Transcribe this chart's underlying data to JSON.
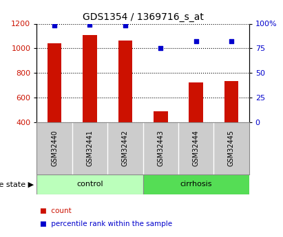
{
  "title": "GDS1354 / 1369716_s_at",
  "samples": [
    "GSM32440",
    "GSM32441",
    "GSM32442",
    "GSM32443",
    "GSM32444",
    "GSM32445"
  ],
  "counts": [
    1040,
    1110,
    1065,
    490,
    720,
    735
  ],
  "percentiles": [
    98,
    99,
    98,
    75,
    82,
    82
  ],
  "groups": [
    {
      "label": "control",
      "indices": [
        0,
        1,
        2
      ],
      "color": "#bbffbb"
    },
    {
      "label": "cirrhosis",
      "indices": [
        3,
        4,
        5
      ],
      "color": "#55dd55"
    }
  ],
  "bar_color": "#cc1100",
  "dot_color": "#0000cc",
  "ylim_left": [
    400,
    1200
  ],
  "ylim_right": [
    0,
    100
  ],
  "yticks_left": [
    400,
    600,
    800,
    1000,
    1200
  ],
  "yticks_right": [
    0,
    25,
    50,
    75,
    100
  ],
  "ytick_labels_right": [
    "0",
    "25",
    "50",
    "75",
    "100%"
  ],
  "background_color": "#ffffff",
  "plot_bg": "#ffffff",
  "grid_color": "#000000",
  "label_count": "count",
  "label_percentile": "percentile rank within the sample",
  "disease_state_label": "disease state",
  "tick_label_color_left": "#cc1100",
  "tick_label_color_right": "#0000cc",
  "sample_box_color": "#cccccc",
  "bar_width": 0.4
}
